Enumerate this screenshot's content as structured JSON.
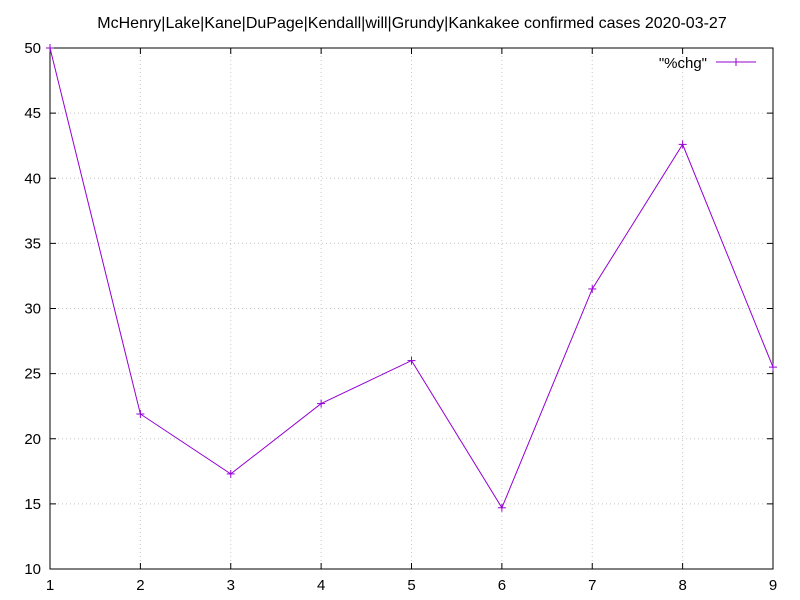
{
  "chart_data": {
    "type": "line",
    "title": "McHenry|Lake|Kane|DuPage|Kendall|will|Grundy|Kankakee confirmed cases 2020-03-27",
    "xlabel": "",
    "ylabel": "",
    "xlim": [
      1,
      9
    ],
    "ylim": [
      10,
      50
    ],
    "x_ticks": [
      "1",
      "2",
      "3",
      "4",
      "5",
      "6",
      "7",
      "8",
      "9"
    ],
    "y_ticks": [
      "10",
      "15",
      "20",
      "25",
      "30",
      "35",
      "40",
      "45",
      "50"
    ],
    "grid": true,
    "legend_position": "top-right",
    "series": [
      {
        "name": "\"%chg\"",
        "color": "#9400d3",
        "marker": "plus",
        "x": [
          1,
          2,
          3,
          4,
          5,
          6,
          7,
          8,
          9
        ],
        "y": [
          50.0,
          21.9,
          17.3,
          22.7,
          26.0,
          14.7,
          31.5,
          42.6,
          25.5
        ]
      }
    ]
  }
}
